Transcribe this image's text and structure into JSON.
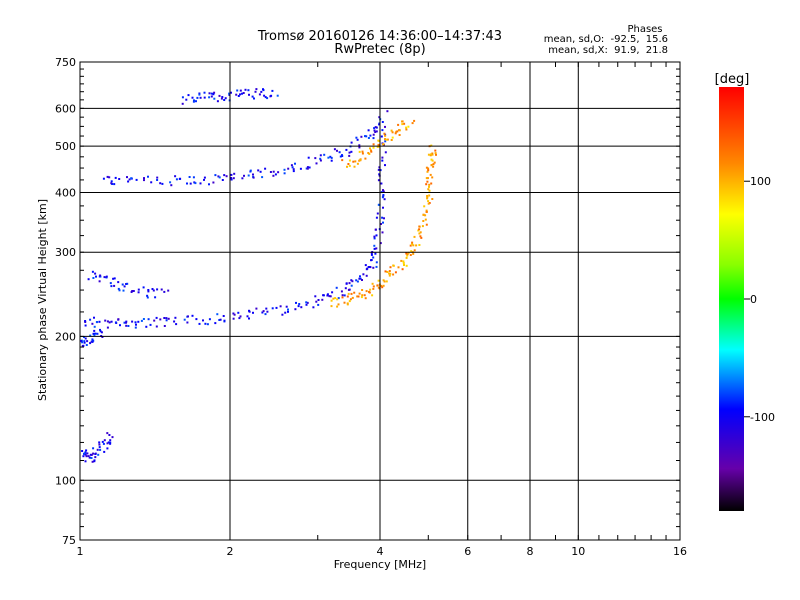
{
  "chart_data": {
    "type": "scatter",
    "title": "Tromsø 20160126 14:36:00–14:37:43",
    "subtitle": "RwPretec (8p)",
    "xlabel": "Frequency [MHz]",
    "ylabel": "Stationary phase Virtual Height [km]",
    "x_scale": "log",
    "y_scale": "log",
    "xlim": [
      1,
      16
    ],
    "ylim": [
      75,
      750
    ],
    "x_ticks": [
      1,
      2,
      4,
      6,
      8,
      10,
      16
    ],
    "x_tick_labels": [
      "1",
      "2",
      "4",
      "6",
      "8",
      "10",
      "16"
    ],
    "y_ticks": [
      75,
      100,
      200,
      300,
      400,
      500,
      600,
      750
    ],
    "y_tick_labels": [
      "75",
      "100",
      "200",
      "300",
      "400",
      "500",
      "600",
      "750"
    ],
    "y_gridlines": [
      100,
      200,
      300,
      400,
      500,
      600
    ],
    "x_gridlines": [
      2,
      4,
      6,
      8,
      10
    ],
    "grid": true,
    "stats": {
      "title": "Phases",
      "o_label": "mean, sd,O:",
      "o_mean": -92.5,
      "o_sd": 15.6,
      "x_label": "mean, sd,X:",
      "x_mean": 91.9,
      "x_sd": 21.8
    },
    "colorbar": {
      "label": "[deg]",
      "range": [
        -180,
        180
      ],
      "ticks": [
        100,
        0,
        -100
      ],
      "tick_labels": [
        "100",
        "0",
        "-100"
      ],
      "colormap": "rainbow"
    },
    "traces": [
      {
        "mode": "O",
        "phase": -100,
        "points": [
          [
            1.02,
            216
          ],
          [
            1.15,
            214
          ],
          [
            1.3,
            214
          ],
          [
            1.5,
            215
          ],
          [
            1.8,
            218
          ],
          [
            2.1,
            222
          ],
          [
            2.5,
            228
          ],
          [
            2.9,
            236
          ],
          [
            3.3,
            248
          ],
          [
            3.6,
            262
          ],
          [
            3.85,
            285
          ],
          [
            3.95,
            320
          ],
          [
            4.0,
            380
          ],
          [
            4.02,
            450
          ],
          [
            4.05,
            600
          ]
        ]
      },
      {
        "mode": "O",
        "phase": -100,
        "points": [
          [
            1.1,
            425
          ],
          [
            1.3,
            425
          ],
          [
            1.6,
            425
          ],
          [
            1.9,
            428
          ],
          [
            2.2,
            438
          ],
          [
            2.6,
            450
          ],
          [
            3.0,
            468
          ],
          [
            3.4,
            490
          ],
          [
            3.8,
            530
          ],
          [
            4.0,
            570
          ]
        ]
      },
      {
        "mode": "X",
        "phase": 110,
        "points": [
          [
            3.2,
            236
          ],
          [
            3.5,
            242
          ],
          [
            3.8,
            250
          ],
          [
            4.05,
            262
          ],
          [
            4.3,
            278
          ],
          [
            4.6,
            300
          ],
          [
            4.8,
            330
          ],
          [
            4.95,
            370
          ],
          [
            5.0,
            420
          ],
          [
            5.05,
            460
          ],
          [
            5.1,
            500
          ]
        ]
      },
      {
        "mode": "X",
        "phase": 105,
        "points": [
          [
            3.4,
            460
          ],
          [
            3.7,
            480
          ],
          [
            4.0,
            510
          ],
          [
            4.3,
            540
          ],
          [
            4.6,
            570
          ]
        ]
      },
      {
        "mode": "O",
        "phase": -100,
        "points": [
          [
            1.05,
            270
          ],
          [
            1.15,
            260
          ],
          [
            1.3,
            250
          ],
          [
            1.5,
            245
          ]
        ]
      },
      {
        "mode": "O",
        "phase": -100,
        "points": [
          [
            1.6,
            630
          ],
          [
            1.8,
            635
          ],
          [
            2.0,
            640
          ],
          [
            2.2,
            645
          ],
          [
            2.5,
            650
          ]
        ]
      },
      {
        "mode": "O",
        "phase": -100,
        "points": [
          [
            1.0,
            115
          ],
          [
            1.05,
            112
          ],
          [
            1.1,
            118
          ],
          [
            1.15,
            124
          ]
        ]
      },
      {
        "mode": "O",
        "phase": -95,
        "points": [
          [
            1.0,
            195
          ],
          [
            1.05,
            200
          ],
          [
            1.1,
            205
          ]
        ]
      }
    ]
  }
}
